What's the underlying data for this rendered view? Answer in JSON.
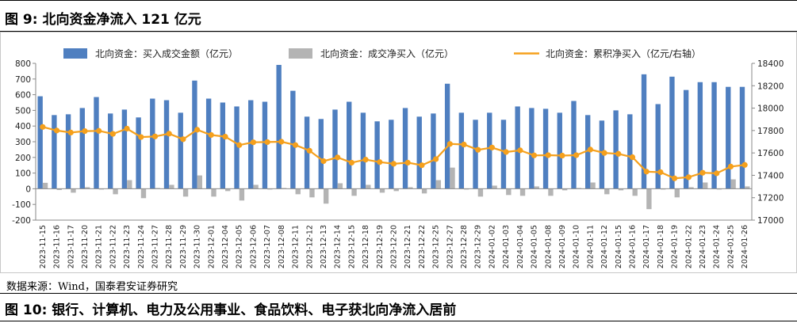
{
  "figure_title": "图 9: 北向资金净流入 121 亿元",
  "source_text": "数据来源：Wind，国泰君安证券研究",
  "next_figure_title": "图 10: 银行、计算机、电力及公用事业、食品饮料、电子获北向净流入居前",
  "colors": {
    "bar_buy": "#4f7fc0",
    "bar_net": "#b4b4b4",
    "line": "#f5a01c"
  },
  "chart_data": {
    "type": "bar",
    "legend_position": "top",
    "grid": false,
    "categories": [
      "2023-11-15",
      "2023-11-16",
      "2023-11-17",
      "2023-11-20",
      "2023-11-21",
      "2023-11-22",
      "2023-11-23",
      "2023-11-24",
      "2023-11-27",
      "2023-11-28",
      "2023-11-29",
      "2023-11-30",
      "2023-12-01",
      "2023-12-04",
      "2023-12-05",
      "2023-12-06",
      "2023-12-07",
      "2023-12-08",
      "2023-12-11",
      "2023-12-12",
      "2023-12-13",
      "2023-12-14",
      "2023-12-15",
      "2023-12-18",
      "2023-12-19",
      "2023-12-20",
      "2023-12-21",
      "2023-12-22",
      "2023-12-25",
      "2023-12-27",
      "2023-12-28",
      "2023-12-29",
      "2024-01-02",
      "2024-01-03",
      "2024-01-04",
      "2024-01-05",
      "2024-01-08",
      "2024-01-09",
      "2024-01-10",
      "2024-01-11",
      "2024-01-12",
      "2024-01-15",
      "2024-01-16",
      "2024-01-17",
      "2024-01-18",
      "2024-01-19",
      "2024-01-22",
      "2024-01-23",
      "2024-01-24",
      "2024-01-25",
      "2024-01-26"
    ],
    "series": [
      {
        "name": "北向资金：买入成交金额（亿元）",
        "type": "bar",
        "axis": "left",
        "values": [
          590,
          470,
          475,
          515,
          585,
          480,
          505,
          455,
          575,
          565,
          485,
          690,
          575,
          550,
          525,
          565,
          555,
          790,
          625,
          460,
          445,
          505,
          555,
          485,
          430,
          440,
          515,
          460,
          480,
          670,
          485,
          440,
          485,
          440,
          525,
          515,
          510,
          485,
          560,
          470,
          435,
          500,
          475,
          730,
          540,
          715,
          630,
          680,
          680,
          650,
          650
        ]
      },
      {
        "name": "北向资金：成交净买入（亿元）",
        "type": "bar",
        "axis": "left",
        "values": [
          38,
          -8,
          -25,
          10,
          -5,
          -35,
          55,
          -60,
          5,
          25,
          -50,
          85,
          -50,
          -15,
          -75,
          25,
          -5,
          5,
          -35,
          -55,
          -95,
          35,
          -45,
          25,
          -25,
          -15,
          10,
          -30,
          55,
          135,
          -5,
          -50,
          20,
          -40,
          -45,
          15,
          -45,
          -10,
          5,
          40,
          -35,
          -10,
          -45,
          -130,
          -5,
          -55,
          10,
          40,
          -5,
          60,
          15
        ]
      },
      {
        "name": "北向资金：累积净买入（亿元/右轴）",
        "type": "line",
        "axis": "right",
        "values": [
          17832,
          17800,
          17782,
          17795,
          17797,
          17770,
          17817,
          17742,
          17747,
          17772,
          17722,
          17807,
          17760,
          17745,
          17670,
          17695,
          17697,
          17700,
          17670,
          17620,
          17527,
          17560,
          17513,
          17540,
          17518,
          17503,
          17513,
          17490,
          17545,
          17680,
          17675,
          17628,
          17648,
          17608,
          17623,
          17578,
          17580,
          17576,
          17580,
          17630,
          17600,
          17592,
          17562,
          17433,
          17428,
          17373,
          17383,
          17423,
          17418,
          17478,
          17493
        ]
      }
    ],
    "ylim": [
      -200,
      800
    ],
    "yticks": [
      -200,
      -100,
      0,
      100,
      200,
      300,
      400,
      500,
      600,
      700,
      800
    ],
    "y2lim": [
      17000,
      18400
    ],
    "y2ticks": [
      17000,
      17200,
      17400,
      17600,
      17800,
      18000,
      18200,
      18400
    ]
  }
}
